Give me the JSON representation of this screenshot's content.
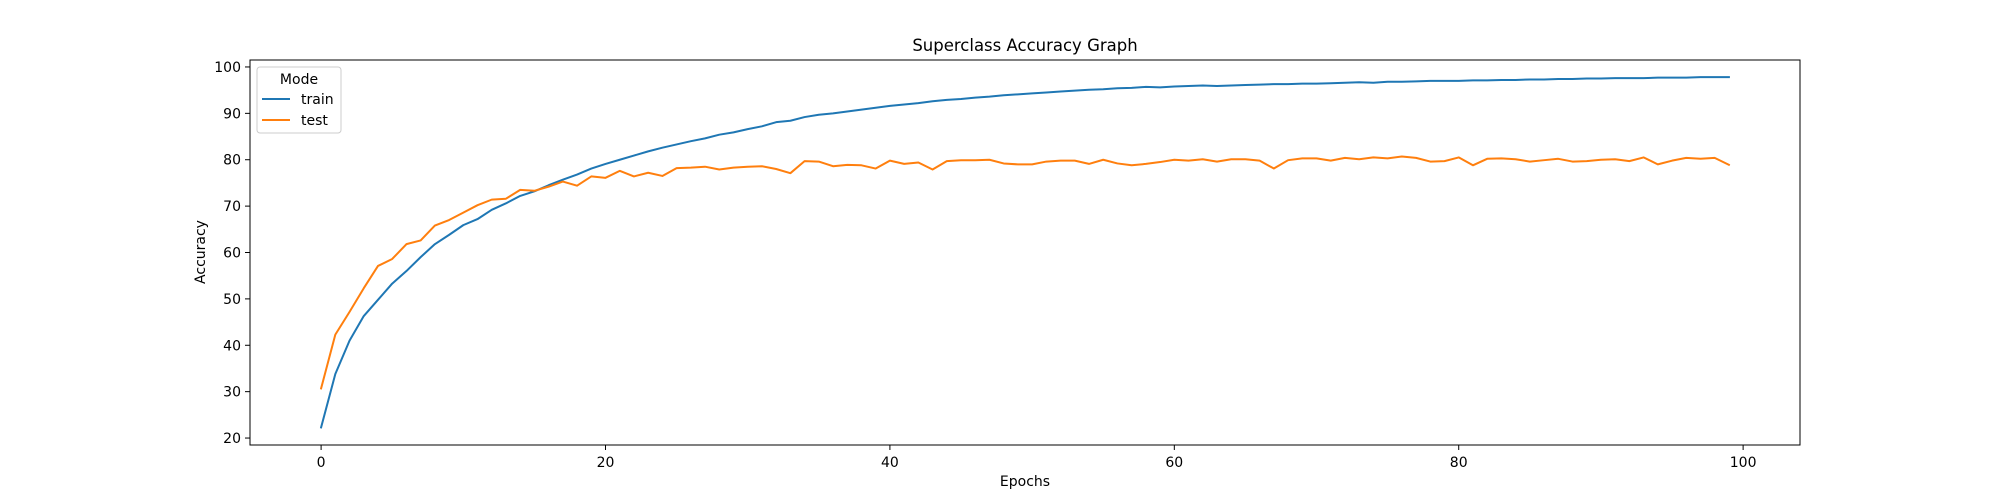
{
  "chart_data": {
    "type": "line",
    "title": "Superclass Accuracy Graph",
    "xlabel": "Epochs",
    "ylabel": "Accuracy",
    "xlim": [
      -5,
      104
    ],
    "ylim": [
      18.5,
      101.5
    ],
    "xticks": [
      0,
      20,
      40,
      60,
      80,
      100
    ],
    "yticks": [
      20,
      30,
      40,
      50,
      60,
      70,
      80,
      90,
      100
    ],
    "grid": false,
    "legend": {
      "title": "Mode",
      "placement": "top-left"
    },
    "x": [
      0,
      1,
      2,
      3,
      4,
      5,
      6,
      7,
      8,
      9,
      10,
      11,
      12,
      13,
      14,
      15,
      16,
      17,
      18,
      19,
      20,
      21,
      22,
      23,
      24,
      25,
      26,
      27,
      28,
      29,
      30,
      31,
      32,
      33,
      34,
      35,
      36,
      37,
      38,
      39,
      40,
      41,
      42,
      43,
      44,
      45,
      46,
      47,
      48,
      49,
      50,
      51,
      52,
      53,
      54,
      55,
      56,
      57,
      58,
      59,
      60,
      61,
      62,
      63,
      64,
      65,
      66,
      67,
      68,
      69,
      70,
      71,
      72,
      73,
      74,
      75,
      76,
      77,
      78,
      79,
      80,
      81,
      82,
      83,
      84,
      85,
      86,
      87,
      88,
      89,
      90,
      91,
      92,
      93,
      94,
      95,
      96,
      97,
      98,
      99
    ],
    "series": [
      {
        "name": "train",
        "color": "#1f77b4",
        "values": [
          22.3,
          33.8,
          41.0,
          46.3,
          49.8,
          53.3,
          56.0,
          59.0,
          61.8,
          63.8,
          65.9,
          67.2,
          69.2,
          70.6,
          72.2,
          73.2,
          74.5,
          75.7,
          76.8,
          78.1,
          79.1,
          80.0,
          80.9,
          81.8,
          82.6,
          83.3,
          84.0,
          84.6,
          85.4,
          85.9,
          86.6,
          87.2,
          88.1,
          88.4,
          89.2,
          89.7,
          90.0,
          90.4,
          90.8,
          91.2,
          91.6,
          91.9,
          92.2,
          92.6,
          92.9,
          93.1,
          93.4,
          93.6,
          93.9,
          94.1,
          94.3,
          94.5,
          94.7,
          94.9,
          95.1,
          95.2,
          95.4,
          95.5,
          95.7,
          95.6,
          95.8,
          95.9,
          96.0,
          95.9,
          96.0,
          96.1,
          96.2,
          96.3,
          96.3,
          96.4,
          96.4,
          96.5,
          96.6,
          96.7,
          96.6,
          96.8,
          96.8,
          96.9,
          97.0,
          97.0,
          97.0,
          97.1,
          97.1,
          97.2,
          97.2,
          97.3,
          97.3,
          97.4,
          97.4,
          97.5,
          97.5,
          97.6,
          97.6,
          97.6,
          97.7,
          97.7,
          97.7,
          97.8,
          97.8,
          97.8
        ]
      },
      {
        "name": "test",
        "color": "#ff7f0e",
        "values": [
          30.7,
          42.3,
          47.2,
          52.3,
          57.1,
          58.6,
          61.8,
          62.6,
          65.8,
          67.0,
          68.6,
          70.2,
          71.4,
          71.6,
          73.5,
          73.3,
          74.2,
          75.3,
          74.4,
          76.4,
          76.1,
          77.6,
          76.4,
          77.2,
          76.5,
          78.2,
          78.3,
          78.5,
          77.9,
          78.3,
          78.5,
          78.6,
          78.0,
          77.1,
          79.7,
          79.6,
          78.6,
          78.9,
          78.8,
          78.1,
          79.8,
          79.1,
          79.4,
          77.9,
          79.7,
          79.9,
          79.9,
          80.0,
          79.2,
          79.0,
          79.0,
          79.6,
          79.8,
          79.8,
          79.1,
          80.0,
          79.2,
          78.8,
          79.1,
          79.5,
          80.0,
          79.8,
          80.1,
          79.6,
          80.1,
          80.1,
          79.8,
          78.1,
          79.9,
          80.3,
          80.3,
          79.8,
          80.4,
          80.1,
          80.5,
          80.3,
          80.7,
          80.4,
          79.6,
          79.7,
          80.5,
          78.8,
          80.2,
          80.3,
          80.1,
          79.6,
          79.9,
          80.2,
          79.6,
          79.7,
          80.0,
          80.1,
          79.7,
          80.5,
          79.0,
          79.8,
          80.4,
          80.2,
          80.4,
          78.9
        ]
      }
    ]
  }
}
